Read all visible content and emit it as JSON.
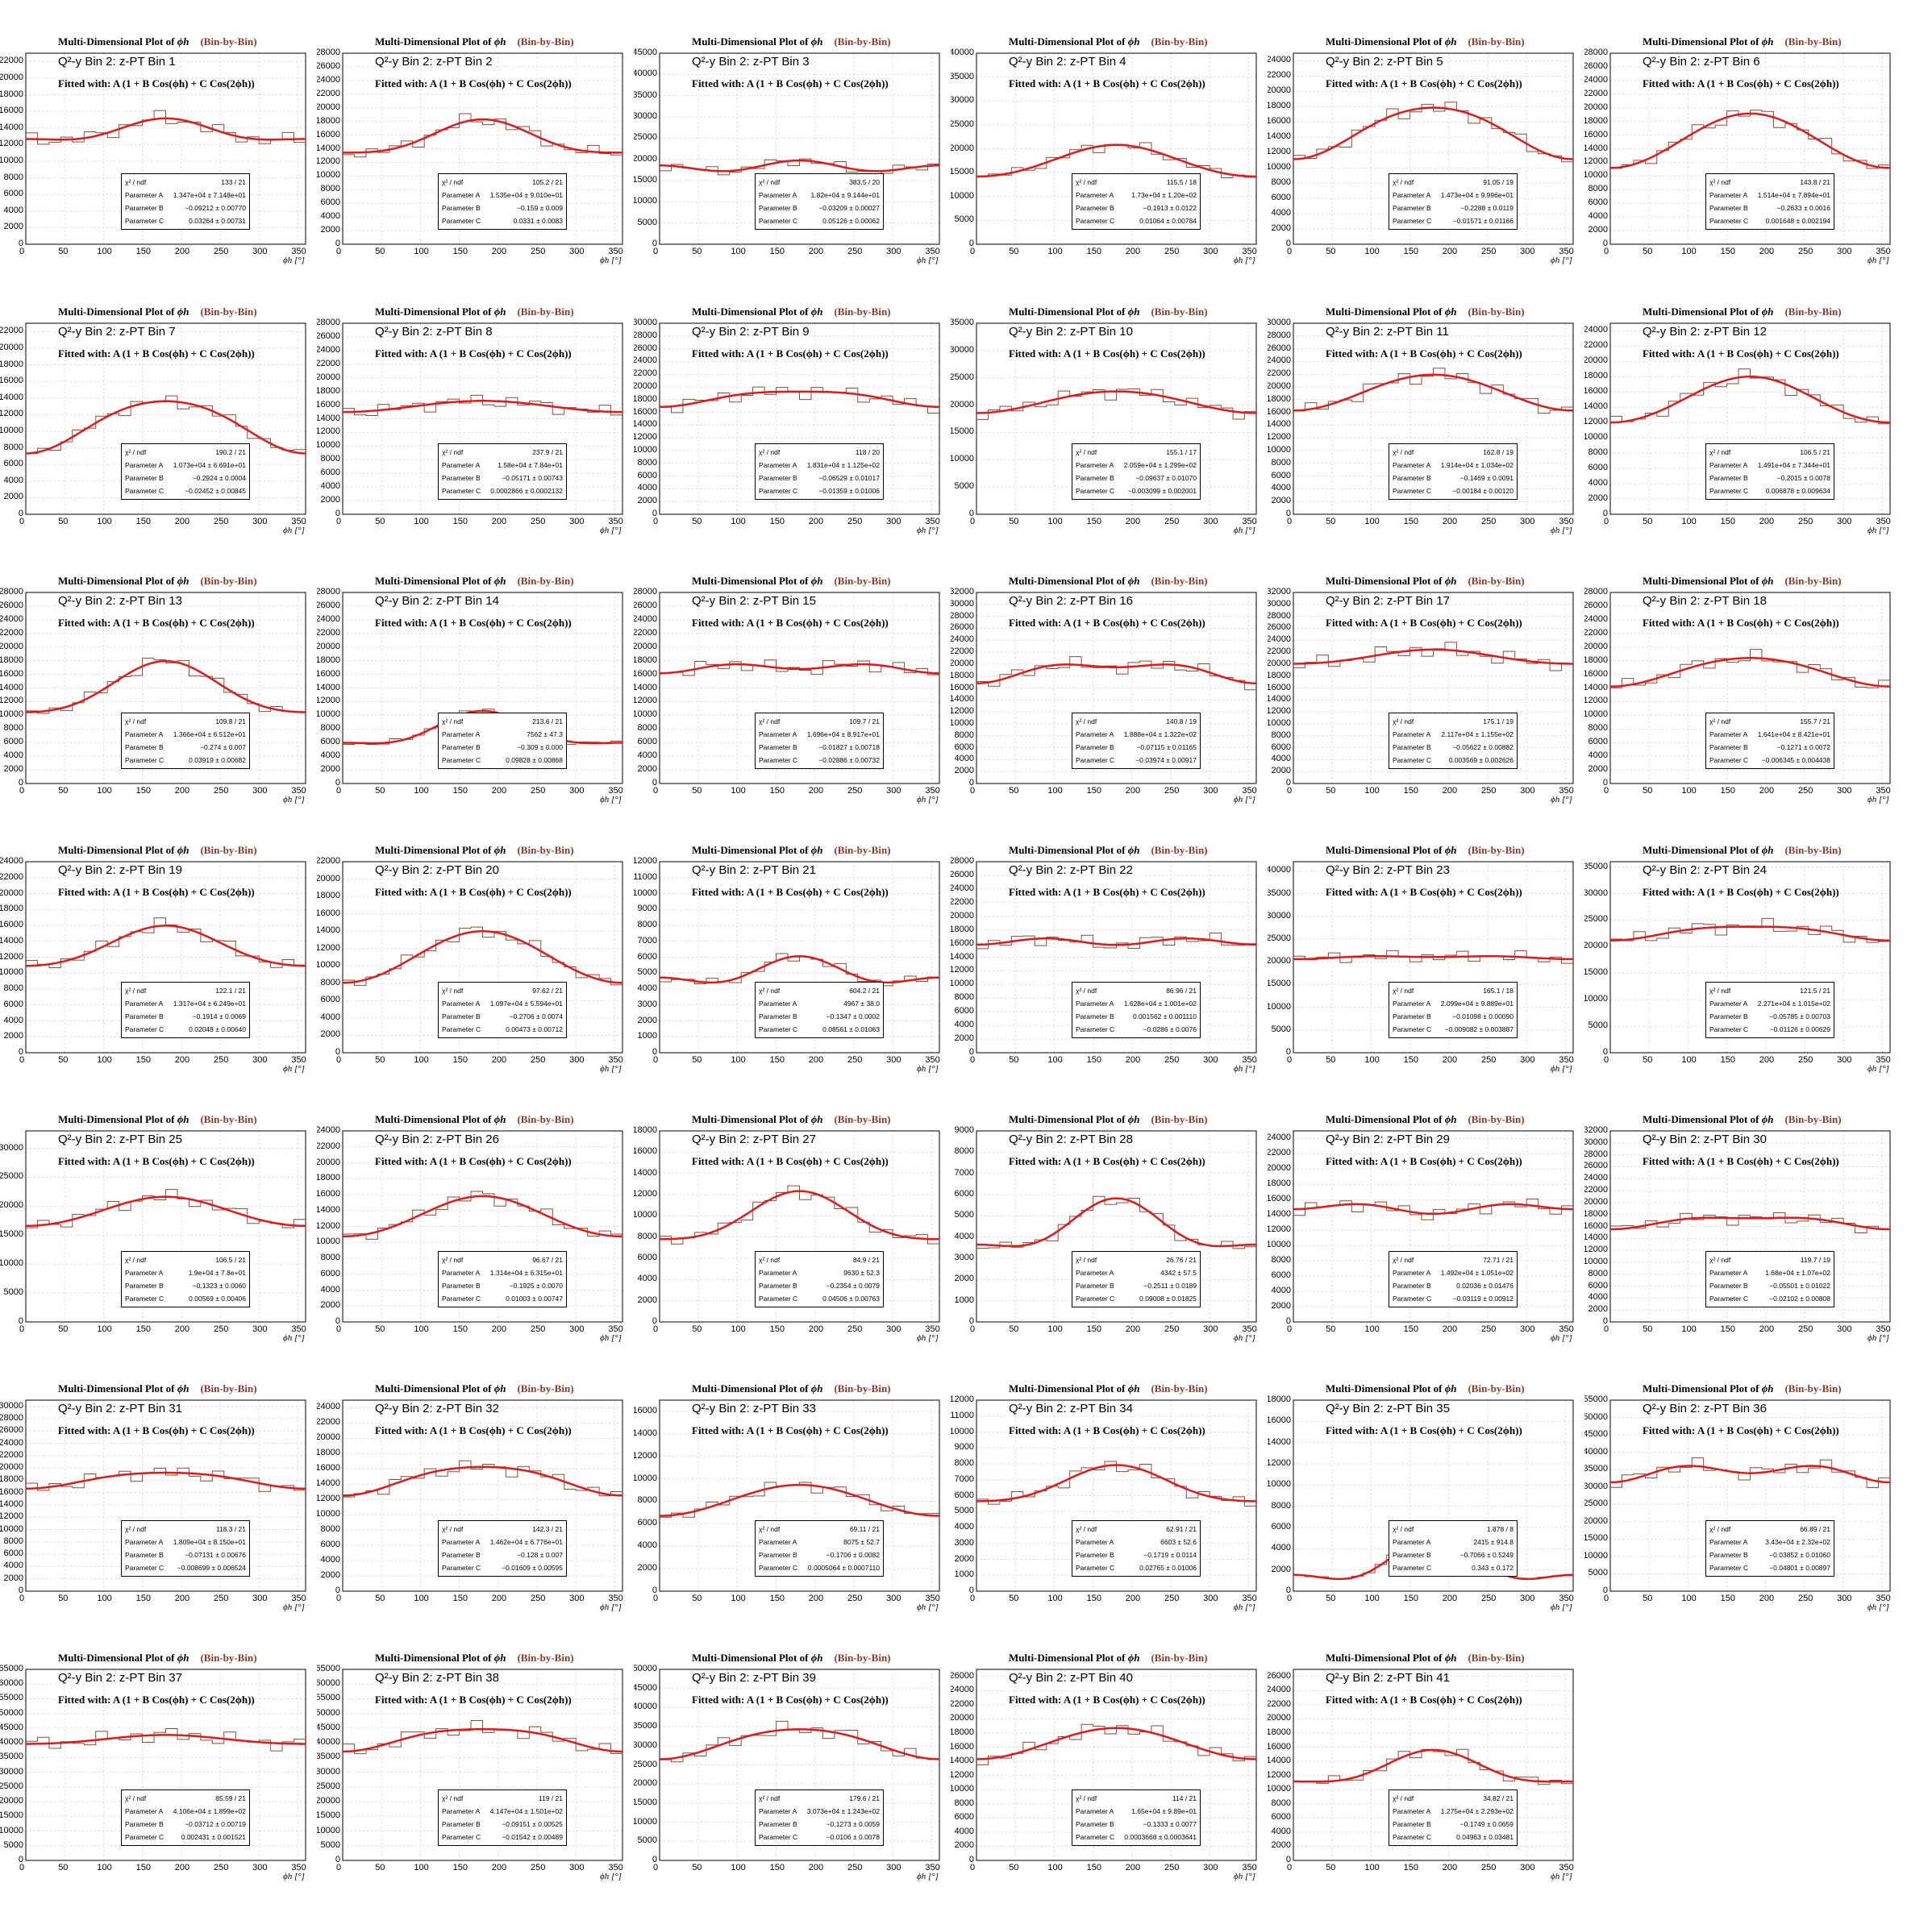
{
  "page_title": "Multi-Dimensional Plot of ϕh (Bin-by-Bin)",
  "title_prefix": "Multi-Dimensional Plot of",
  "title_symbol": "ϕh",
  "title_suffix": "(Bin-by-Bin)",
  "header_prefix": "Q²-y Bin 2: z-PT Bin",
  "fit_label": "Fitted with: A (1 + B Cos(ϕh) + C Cos(2ϕh))",
  "xaxis_label": "ϕh [°]",
  "colors": {
    "fit": "#e0191b",
    "hist": "#8b4a3a",
    "grid": "#d9d9d9"
  },
  "chart_data": [
    {
      "type": "line",
      "bin": 1,
      "A": 13470,
      "B": -0.09212,
      "C": 0.03264,
      "chi2": "133 / 21",
      "pA": "1.347e+04 ± 7.148e+01",
      "pB": "−0.09212 ± 0.00770",
      "pC": "0.03264 ± 0.00731",
      "ylim": [
        0,
        23000
      ]
    },
    {
      "type": "line",
      "bin": 2,
      "A": 15350,
      "B": -0.159,
      "C": 0.0331,
      "chi2": "105.2 / 21",
      "pA": "1.535e+04 ± 9.010e+01",
      "pB": "−0.159 ± 0.009",
      "pC": "0.0331 ± 0.0083",
      "ylim": [
        0,
        28000
      ]
    },
    {
      "type": "line",
      "bin": 3,
      "A": 18200,
      "B": -0.03209,
      "C": 0.05126,
      "chi2": "383.5 / 20",
      "pA": "1.82e+04 ± 9.144e+01",
      "pB": "−0.03209 ± 0.00027",
      "pC": "0.05126 ± 0.00062",
      "ylim": [
        0,
        45000
      ]
    },
    {
      "type": "line",
      "bin": 4,
      "A": 17300,
      "B": -0.1913,
      "C": 0.01064,
      "chi2": "115.5 / 18",
      "pA": "1.73e+04 ± 1.20e+02",
      "pB": "−0.1913 ± 0.0122",
      "pC": "0.01064 ± 0.00784",
      "ylim": [
        0,
        40000
      ]
    },
    {
      "type": "line",
      "bin": 5,
      "A": 14730,
      "B": -0.2288,
      "C": -0.01571,
      "chi2": "91.05 / 19",
      "pA": "1.473e+04 ± 9.996e+01",
      "pB": "−0.2288 ± 0.0119",
      "pC": "−0.01571 ± 0.01166",
      "ylim": [
        0,
        25000
      ]
    },
    {
      "type": "line",
      "bin": 6,
      "A": 15140,
      "B": -0.2633,
      "C": 0.001648,
      "chi2": "143.8 / 21",
      "pA": "1.514e+04 ± 7.894e+01",
      "pB": "−0.2633 ± 0.0016",
      "pC": "0.001648 ± 0.002194",
      "ylim": [
        0,
        28000
      ]
    },
    {
      "type": "line",
      "bin": 7,
      "A": 10730,
      "B": -0.2924,
      "C": -0.02452,
      "chi2": "190.2 / 21",
      "pA": "1.073e+04 ± 6.691e+01",
      "pB": "−0.2924 ± 0.0004",
      "pC": "−0.02452 ± 0.00845",
      "ylim": [
        0,
        23000
      ]
    },
    {
      "type": "line",
      "bin": 8,
      "A": 15800,
      "B": -0.05171,
      "C": 0.0002866,
      "chi2": "237.9 / 21",
      "pA": "1.58e+04 ± 7.84e+01",
      "pB": "−0.05171 ± 0.00743",
      "pC": "0.0002866 ± 0.0002132",
      "ylim": [
        0,
        28000
      ]
    },
    {
      "type": "line",
      "bin": 9,
      "A": 18310,
      "B": -0.06529,
      "C": -0.01359,
      "chi2": "118 / 20",
      "pA": "1.831e+04 ± 1.125e+02",
      "pB": "−0.06529 ± 0.01017",
      "pC": "−0.01359 ± 0.01006",
      "ylim": [
        0,
        30000
      ]
    },
    {
      "type": "line",
      "bin": 10,
      "A": 20590,
      "B": -0.09637,
      "C": -0.003099,
      "chi2": "155.1 / 17",
      "pA": "2.059e+04 ± 1.299e+02",
      "pB": "−0.09637 ± 0.01070",
      "pC": "−0.003099 ± 0.002001",
      "ylim": [
        0,
        35000
      ]
    },
    {
      "type": "line",
      "bin": 11,
      "A": 19140,
      "B": -0.1469,
      "C": -0.00184,
      "chi2": "162.8 / 19",
      "pA": "1.914e+04 ± 1.034e+02",
      "pB": "−0.1469 ± 0.0091",
      "pC": "−0.00184 ± 0.00120",
      "ylim": [
        0,
        30000
      ]
    },
    {
      "type": "line",
      "bin": 12,
      "A": 14910,
      "B": -0.2015,
      "C": 0.006878,
      "chi2": "106.5 / 21",
      "pA": "1.491e+04 ± 7.344e+01",
      "pB": "−0.2015 ± 0.0078",
      "pC": "0.006878 ± 0.009634",
      "ylim": [
        0,
        25000
      ]
    },
    {
      "type": "line",
      "bin": 13,
      "A": 13660,
      "B": -0.274,
      "C": 0.03919,
      "chi2": "109.8 / 21",
      "pA": "1.366e+04 ± 6.512e+01",
      "pB": "−0.274 ± 0.007",
      "pC": "0.03919 ± 0.00682",
      "ylim": [
        0,
        28000
      ]
    },
    {
      "type": "line",
      "bin": 14,
      "A": 7562,
      "B": -0.309,
      "C": 0.09828,
      "chi2": "213.6 / 21",
      "pA": "7562 ± 47.3",
      "pB": "−0.309 ± 0.000",
      "pC": "0.09828 ± 0.00868",
      "ylim": [
        0,
        28000
      ],
      "ylim_note": "8000–28000 labels"
    },
    {
      "type": "line",
      "bin": 15,
      "A": 16960,
      "B": -0.01827,
      "C": -0.02886,
      "chi2": "109.7 / 21",
      "pA": "1.696e+04 ± 8.917e+01",
      "pB": "−0.01827 ± 0.00718",
      "pC": "−0.02886 ± 0.00732",
      "ylim": [
        0,
        28000
      ]
    },
    {
      "type": "line",
      "bin": 16,
      "A": 18880,
      "B": -0.07115,
      "C": -0.03974,
      "chi2": "140.8 / 19",
      "pA": "1.888e+04 ± 1.322e+02",
      "pB": "−0.07115 ± 0.01165",
      "pC": "−0.03974 ± 0.00917",
      "ylim": [
        0,
        32000
      ]
    },
    {
      "type": "line",
      "bin": 17,
      "A": 21170,
      "B": -0.05622,
      "C": 0.003569,
      "chi2": "175.1 / 19",
      "pA": "2.117e+04 ± 1.155e+02",
      "pB": "−0.05622 ± 0.00882",
      "pC": "0.003569 ± 0.002626",
      "ylim": [
        0,
        32000
      ]
    },
    {
      "type": "line",
      "bin": 18,
      "A": 16410,
      "B": -0.1271,
      "C": -0.006345,
      "chi2": "155.7 / 21",
      "pA": "1.641e+04 ± 8.421e+01",
      "pB": "−0.1271 ± 0.0072",
      "pC": "−0.006345 ± 0.004438",
      "ylim": [
        0,
        28000
      ]
    },
    {
      "type": "line",
      "bin": 19,
      "A": 13170,
      "B": -0.1914,
      "C": 0.02048,
      "chi2": "122.1 / 21",
      "pA": "1.317e+04 ± 6.249e+01",
      "pB": "−0.1914 ± 0.0069",
      "pC": "0.02048 ± 0.00640",
      "ylim": [
        0,
        24000
      ]
    },
    {
      "type": "line",
      "bin": 20,
      "A": 10970,
      "B": -0.2706,
      "C": 0.00473,
      "chi2": "97.62 / 21",
      "pA": "1.097e+04 ± 5.594e+01",
      "pB": "−0.2706 ± 0.0074",
      "pC": "0.00473 ± 0.00712",
      "ylim": [
        0,
        22000
      ]
    },
    {
      "type": "line",
      "bin": 21,
      "A": 4967,
      "B": -0.1347,
      "C": 0.08561,
      "chi2": "604.2 / 21",
      "pA": "4967 ± 38.0",
      "pB": "−0.1347 ± 0.0002",
      "pC": "0.08561 ± 0.01063",
      "ylim": [
        0,
        12000
      ]
    },
    {
      "type": "line",
      "bin": 22,
      "A": 16280,
      "B": 0.001562,
      "C": -0.0286,
      "chi2": "86.96 / 21",
      "pA": "1.628e+04 ± 1.001e+02",
      "pB": "0.001562 ± 0.001110",
      "pC": "−0.0286 ± 0.0076",
      "ylim": [
        0,
        28000
      ]
    },
    {
      "type": "line",
      "bin": 23,
      "A": 20990,
      "B": -0.01098,
      "C": -0.009082,
      "chi2": "165.1 / 18",
      "pA": "2.099e+04 ± 9.889e+01",
      "pB": "−0.01098 ± 0.00090",
      "pC": "−0.009082 ± 0.003887",
      "ylim": [
        0,
        42000
      ]
    },
    {
      "type": "line",
      "bin": 24,
      "A": 22710,
      "B": -0.05785,
      "C": -0.01126,
      "chi2": "121.5 / 21",
      "pA": "2.271e+04 ± 1.015e+02",
      "pB": "−0.05785 ± 0.00703",
      "pC": "−0.01126 ± 0.00629",
      "ylim": [
        0,
        36000
      ]
    },
    {
      "type": "line",
      "bin": 25,
      "A": 19000,
      "B": -0.1323,
      "C": 0.00569,
      "chi2": "106.5 / 21",
      "pA": "1.9e+04 ± 7.8e+01",
      "pB": "−0.1323 ± 0.0060",
      "pC": "0.00569 ± 0.00406",
      "ylim": [
        0,
        33000
      ]
    },
    {
      "type": "line",
      "bin": 26,
      "A": 13140,
      "B": -0.1925,
      "C": 0.01003,
      "chi2": "96.67 / 21",
      "pA": "1.314e+04 ± 6.315e+01",
      "pB": "−0.1925 ± 0.0070",
      "pC": "0.01003 ± 0.00747",
      "ylim": [
        0,
        24000
      ]
    },
    {
      "type": "line",
      "bin": 27,
      "A": 9630,
      "B": -0.2354,
      "C": 0.04506,
      "chi2": "84.9 / 21",
      "pA": "9630 ± 52.3",
      "pB": "−0.2354 ± 0.0079",
      "pC": "0.04506 ± 0.00763",
      "ylim": [
        0,
        18000
      ]
    },
    {
      "type": "line",
      "bin": 28,
      "A": 4342,
      "B": -0.2511,
      "C": 0.09008,
      "chi2": "26.76 / 21",
      "pA": "4342 ± 57.5",
      "pB": "−0.2511 ± 0.0189",
      "pC": "0.09008 ± 0.01825",
      "ylim": [
        0,
        9000
      ]
    },
    {
      "type": "line",
      "bin": 29,
      "A": 14920,
      "B": 0.02036,
      "C": -0.03119,
      "chi2": "72.71 / 21",
      "pA": "1.492e+04 ± 1.051e+02",
      "pB": "0.02036 ± 0.01476",
      "pC": "−0.03119 ± 0.00912",
      "ylim": [
        0,
        25000
      ]
    },
    {
      "type": "line",
      "bin": 30,
      "A": 16800,
      "B": -0.05501,
      "C": -0.02102,
      "chi2": "119.7 / 19",
      "pA": "1.68e+04 ± 1.07e+02",
      "pB": "−0.05501 ± 0.01022",
      "pC": "−0.02102 ± 0.00808",
      "ylim": [
        0,
        32000
      ]
    },
    {
      "type": "line",
      "bin": 31,
      "A": 18090,
      "B": -0.07131,
      "C": -0.008699,
      "chi2": "118.3 / 21",
      "pA": "1.809e+04 ± 8.150e+01",
      "pB": "−0.07131 ± 0.00676",
      "pC": "−0.008699 ± 0.006524",
      "ylim": [
        0,
        31000
      ]
    },
    {
      "type": "line",
      "bin": 32,
      "A": 14620,
      "B": -0.128,
      "C": -0.01609,
      "chi2": "142.3 / 21",
      "pA": "1.462e+04 ± 6.776e+01",
      "pB": "−0.128 ± 0.007",
      "pC": "−0.01609 ± 0.00595",
      "ylim": [
        0,
        25000
      ]
    },
    {
      "type": "line",
      "bin": 33,
      "A": 8075,
      "B": -0.1706,
      "C": 0.0005064,
      "chi2": "69.11 / 21",
      "pA": "8075 ± 52.7",
      "pB": "−0.1706 ± 0.0082",
      "pC": "0.0005064 ± 0.0007110",
      "ylim": [
        0,
        17000
      ]
    },
    {
      "type": "line",
      "bin": 34,
      "A": 6603,
      "B": -0.1719,
      "C": 0.02765,
      "chi2": "62.91 / 21",
      "pA": "6603 ± 52.6",
      "pB": "−0.1719 ± 0.0114",
      "pC": "0.02765 ± 0.01006",
      "ylim": [
        0,
        12000
      ]
    },
    {
      "type": "line",
      "bin": 35,
      "A": 2415,
      "B": -0.7066,
      "C": 0.343,
      "chi2": "1.878 / 8",
      "pA": "2415 ± 914.8",
      "pB": "−0.7066 ± 0.5249",
      "pC": "0.343 ± 0.172",
      "ylim": [
        0,
        18000
      ]
    },
    {
      "type": "line",
      "bin": 36,
      "A": 34300,
      "B": -0.03852,
      "C": -0.04801,
      "chi2": "66.89 / 21",
      "pA": "3.43e+04 ± 2.32e+02",
      "pB": "−0.03852 ± 0.01060",
      "pC": "−0.04801 ± 0.00897",
      "ylim": [
        0,
        55000
      ]
    },
    {
      "type": "line",
      "bin": 37,
      "A": 41060,
      "B": -0.03712,
      "C": 0.002431,
      "chi2": "85.59 / 21",
      "pA": "4.106e+04 ± 1.899e+02",
      "pB": "−0.03712 ± 0.00719",
      "pC": "0.002431 ± 0.001521",
      "ylim": [
        0,
        65000
      ]
    },
    {
      "type": "line",
      "bin": 38,
      "A": 41470,
      "B": -0.09151,
      "C": -0.01542,
      "chi2": "119 / 21",
      "pA": "4.147e+04 ± 1.501e+02",
      "pB": "−0.09151 ± 0.00525",
      "pC": "−0.01542 ± 0.00489",
      "ylim": [
        0,
        65000
      ]
    },
    {
      "type": "line",
      "bin": 39,
      "A": 30730,
      "B": -0.1273,
      "C": -0.0106,
      "chi2": "179.6 / 21",
      "pA": "3.073e+04 ± 1.243e+02",
      "pB": "−0.1273 ± 0.0059",
      "pC": "−0.0106 ± 0.0078",
      "ylim": [
        0,
        50000
      ]
    },
    {
      "type": "line",
      "bin": 40,
      "A": 16500,
      "B": -0.1333,
      "C": 0.0003668,
      "chi2": "114 / 21",
      "pA": "1.65e+04 ± 9.89e+01",
      "pB": "−0.1333 ± 0.0077",
      "pC": "0.0003668 ± 0.0003641",
      "ylim": [
        0,
        27000
      ]
    },
    {
      "type": "line",
      "bin": 41,
      "A": 12750,
      "B": -0.1749,
      "C": 0.04963,
      "chi2": "34.82 / 21",
      "pA": "1.275e+04 ± 2.293e+02",
      "pB": "−0.1749 ± 0.0659",
      "pC": "0.04963 ± 0.03481",
      "ylim": [
        0,
        27000
      ]
    }
  ],
  "stat_labels": {
    "chi2": "χ² / ndf",
    "pA": "Parameter A",
    "pB": "Parameter B",
    "pC": "Parameter C"
  },
  "x_ticks": [
    0,
    50,
    100,
    150,
    200,
    250,
    300,
    350
  ]
}
